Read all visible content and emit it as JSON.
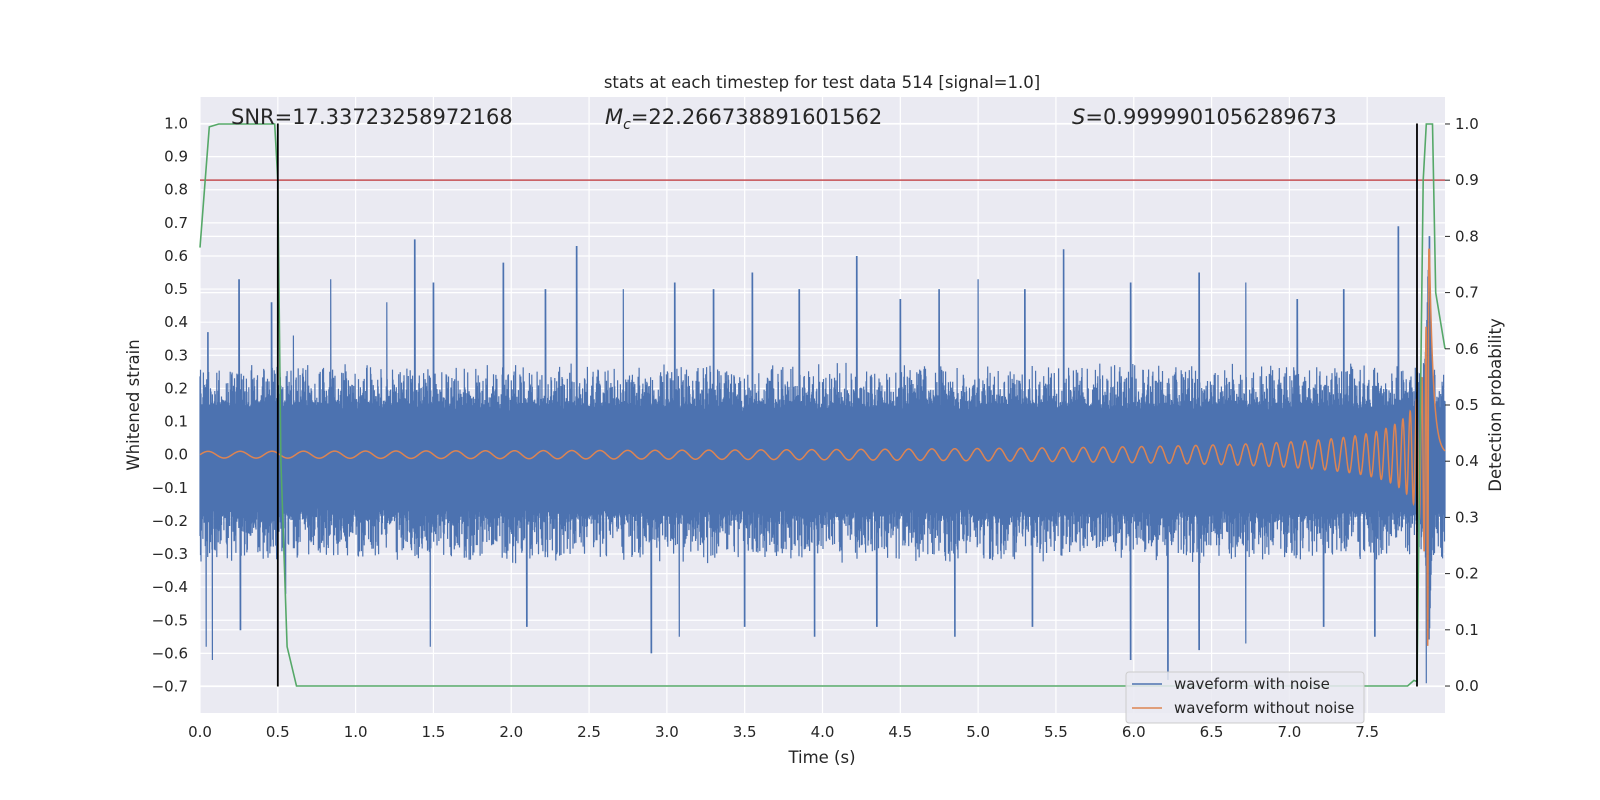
{
  "chart_data": {
    "type": "line",
    "title": "stats at each timestep for test data 514 [signal=1.0]",
    "xlabel": "Time (s)",
    "ylabel": "Whitened strain",
    "y2label": "Detection probability",
    "xlim": [
      0.0,
      8.0
    ],
    "ylim": [
      -0.78,
      1.08
    ],
    "y2lim": [
      -0.048,
      1.048
    ],
    "xticks": [
      "0.0",
      "0.5",
      "1.0",
      "1.5",
      "2.0",
      "2.5",
      "3.0",
      "3.5",
      "4.0",
      "4.5",
      "5.0",
      "5.5",
      "6.0",
      "6.5",
      "7.0",
      "7.5"
    ],
    "yticks": [
      "1.0",
      "0.9",
      "0.8",
      "0.7",
      "0.6",
      "0.5",
      "0.4",
      "0.3",
      "0.2",
      "0.1",
      "0.0",
      "−0.1",
      "−0.2",
      "−0.3",
      "−0.4",
      "−0.5",
      "−0.6",
      "−0.7"
    ],
    "y2ticks": [
      "1.0",
      "0.9",
      "0.8",
      "0.7",
      "0.6",
      "0.5",
      "0.4",
      "0.3",
      "0.2",
      "0.1",
      "0.0"
    ],
    "grid": true,
    "legend_position": "bottom-right",
    "colors": {
      "noise": "#4c72b0",
      "signal": "#dd8452",
      "probability": "#55a868",
      "threshold": "#c44e52",
      "markers": "#000000",
      "background": "#eaeaf2",
      "grid": "#ffffff"
    },
    "series": [
      {
        "name": "waveform with noise",
        "kind": "noise",
        "envelope_upper_peaks": [
          [
            0.05,
            0.37
          ],
          [
            0.25,
            0.53
          ],
          [
            0.46,
            0.46
          ],
          [
            0.6,
            0.36
          ],
          [
            0.84,
            0.53
          ],
          [
            1.2,
            0.46
          ],
          [
            1.38,
            0.65
          ],
          [
            1.5,
            0.52
          ],
          [
            1.95,
            0.58
          ],
          [
            2.22,
            0.5
          ],
          [
            2.42,
            0.63
          ],
          [
            2.72,
            0.5
          ],
          [
            3.05,
            0.52
          ],
          [
            3.3,
            0.5
          ],
          [
            3.55,
            0.55
          ],
          [
            3.85,
            0.5
          ],
          [
            4.22,
            0.6
          ],
          [
            4.5,
            0.47
          ],
          [
            4.75,
            0.5
          ],
          [
            5.0,
            0.53
          ],
          [
            5.3,
            0.5
          ],
          [
            5.55,
            0.62
          ],
          [
            5.98,
            0.52
          ],
          [
            6.42,
            0.55
          ],
          [
            6.72,
            0.52
          ],
          [
            7.05,
            0.47
          ],
          [
            7.35,
            0.5
          ],
          [
            7.7,
            0.69
          ],
          [
            7.9,
            0.66
          ]
        ],
        "envelope_lower_peaks": [
          [
            0.04,
            -0.58
          ],
          [
            0.08,
            -0.62
          ],
          [
            0.26,
            -0.53
          ],
          [
            0.55,
            -0.42
          ],
          [
            1.48,
            -0.58
          ],
          [
            2.1,
            -0.52
          ],
          [
            2.9,
            -0.6
          ],
          [
            3.08,
            -0.55
          ],
          [
            3.5,
            -0.52
          ],
          [
            3.95,
            -0.55
          ],
          [
            4.35,
            -0.52
          ],
          [
            4.85,
            -0.55
          ],
          [
            5.35,
            -0.52
          ],
          [
            5.98,
            -0.62
          ],
          [
            6.22,
            -0.68
          ],
          [
            6.42,
            -0.59
          ],
          [
            6.72,
            -0.57
          ],
          [
            7.22,
            -0.52
          ],
          [
            7.55,
            -0.55
          ],
          [
            7.88,
            -0.69
          ]
        ]
      },
      {
        "name": "waveform without noise",
        "kind": "chirp",
        "t_merger": 7.9,
        "chirp_power": 0.62,
        "amplitude_start": 0.01,
        "amplitude_peak": 0.62
      },
      {
        "name": "detection probability",
        "axis": "right",
        "points": [
          [
            0.0,
            0.78
          ],
          [
            0.06,
            0.995
          ],
          [
            0.12,
            1.0
          ],
          [
            0.48,
            1.0
          ],
          [
            0.5,
            0.9
          ],
          [
            0.52,
            0.4
          ],
          [
            0.56,
            0.07
          ],
          [
            0.62,
            0.0
          ],
          [
            7.76,
            0.0
          ],
          [
            7.8,
            0.01
          ],
          [
            7.82,
            0.008
          ],
          [
            7.86,
            0.9
          ],
          [
            7.88,
            1.0
          ],
          [
            7.92,
            1.0
          ],
          [
            7.94,
            0.7
          ],
          [
            8.0,
            0.6
          ]
        ]
      }
    ],
    "threshold": {
      "axis": "right",
      "value": 0.9
    },
    "vlines": [
      {
        "x": 0.5,
        "y": [
          -0.7,
          1.0
        ]
      },
      {
        "x": 7.82,
        "y": [
          -0.7,
          1.0
        ]
      }
    ],
    "annotations": {
      "snr": "SNR=17.33723258972168",
      "mc_symbol": "M",
      "mc_subscript": "c",
      "mc_value": "=22.266738891601562",
      "s_symbol": "S",
      "s_value": "=0.9999901056289673"
    },
    "legend": [
      "waveform with noise",
      "waveform without noise"
    ]
  }
}
